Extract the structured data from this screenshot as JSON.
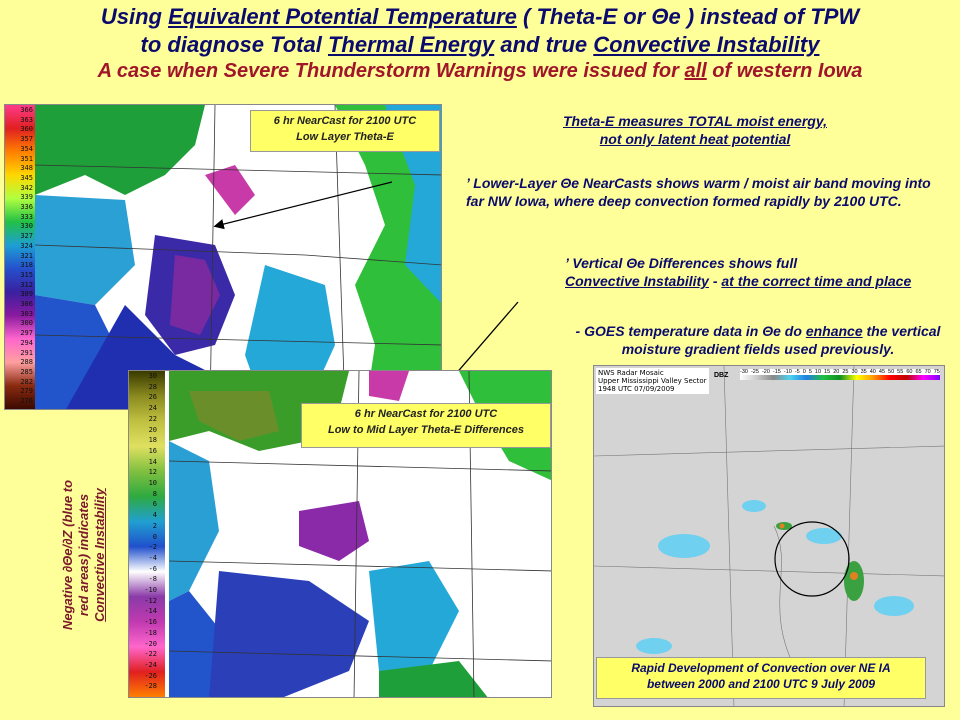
{
  "title": {
    "line1_a": "Using ",
    "line1_u1": "Equivalent Potential Temperature",
    "line1_b": " ( Theta-E or Θe  ) instead of TPW",
    "line2_a": "to diagnose Total ",
    "line2_u1": "Thermal Energy",
    "line2_b": " and true ",
    "line2_u2": "Convective Instability",
    "line3_a": "A case when Severe Thunderstorm Warnings were issued for ",
    "line3_u": "all",
    "line3_b": " of western Iowa"
  },
  "map1": {
    "caption_line1": "6 hr NearCast for 2100 UTC",
    "caption_line2": "Low Layer Theta-E",
    "scale": [
      "366",
      "363",
      "360",
      "357",
      "354",
      "351",
      "348",
      "345",
      "342",
      "339",
      "336",
      "333",
      "330",
      "327",
      "324",
      "321",
      "318",
      "315",
      "312",
      "309",
      "306",
      "303",
      "300",
      "297",
      "294",
      "291",
      "288",
      "285",
      "282",
      "279",
      "276"
    ]
  },
  "map2": {
    "caption_line1": "6 hr NearCast for 2100 UTC",
    "caption_line2": "Low to Mid Layer Theta-E Differences",
    "scale": [
      "30",
      "28",
      "26",
      "24",
      "22",
      "20",
      "18",
      "16",
      "14",
      "12",
      "10",
      "8",
      "6",
      "4",
      "2",
      "0",
      "-2",
      "-4",
      "-6",
      "-8",
      "-10",
      "-12",
      "-14",
      "-16",
      "-18",
      "-20",
      "-22",
      "-24",
      "-26",
      "-28"
    ],
    "side_label_line1": "Negative ∂Θe/∂Z (blue to",
    "side_label_line2": "red areas) indicates",
    "side_label_line3": "Convective Instability"
  },
  "notes": {
    "n1_line1": "Theta-E measures TOTAL moist energy,",
    "n1_line2": "not only latent heat potential",
    "n2_bullet": "’",
    "n2_text": " Lower-Layer Θe NearCasts shows warm / moist air band moving into far NW Iowa, where deep convection formed rapidly by 2100 UTC.",
    "n3_bullet": "’",
    "n3_line1": " Vertical Θe Differences shows  full",
    "n3_u": "Convective Instability",
    "n3_mid": " - ",
    "n3_u2": "at the correct time and place",
    "n4_a": "- GOES temperature data in Θe do ",
    "n4_u": "enhance",
    "n4_b": " the vertical moisture gradient fields used previously."
  },
  "radar": {
    "hdr1": "NWS Radar Mosaic",
    "hdr2": "Upper Mississippi Valley Sector",
    "hdr3": "1948 UTC 07/09/2009",
    "dbz_label": "DBZ",
    "dbz_ticks": [
      "-30",
      "-25",
      "-20",
      "-15",
      "-10",
      "-5",
      "0",
      "5",
      "10",
      "15",
      "20",
      "25",
      "30",
      "35",
      "40",
      "45",
      "50",
      "55",
      "60",
      "65",
      "70",
      "75"
    ],
    "caption_line1": "Rapid Development of Convection over NE IA",
    "caption_line2": "between 2000 and 2100 UTC 9 July 2009"
  }
}
